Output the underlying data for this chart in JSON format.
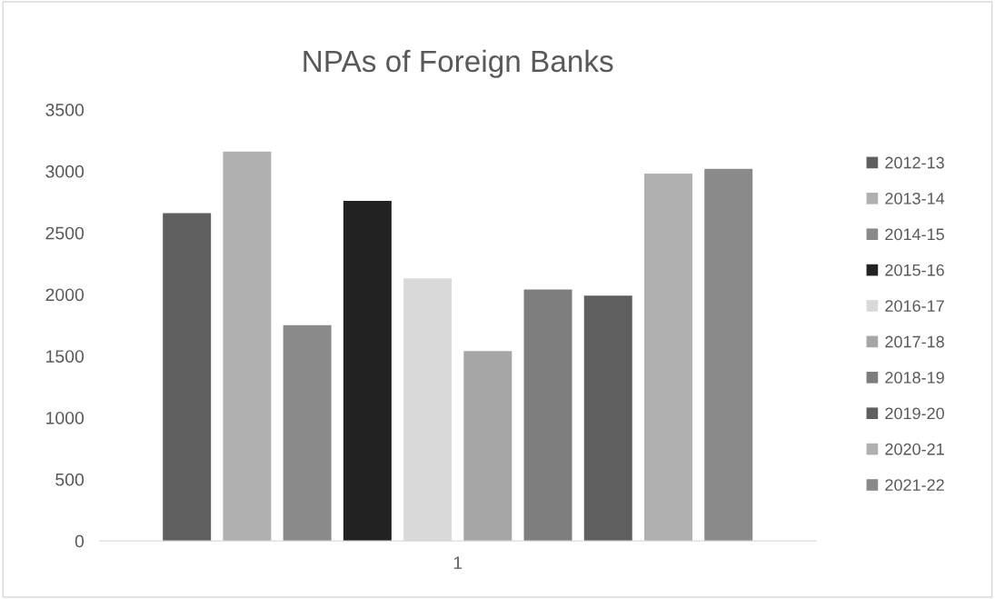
{
  "chart_data": {
    "type": "bar",
    "title": "NPAs of Foreign Banks",
    "categories": [
      "1"
    ],
    "series": [
      {
        "name": "2012-13",
        "color": "#5f5f5f",
        "values": [
          2660
        ]
      },
      {
        "name": "2013-14",
        "color": "#b0b0b0",
        "values": [
          3160
        ]
      },
      {
        "name": "2014-15",
        "color": "#8a8a8a",
        "values": [
          1750
        ]
      },
      {
        "name": "2015-16",
        "color": "#222222",
        "values": [
          2760
        ]
      },
      {
        "name": "2016-17",
        "color": "#d9d9d9",
        "values": [
          2130
        ]
      },
      {
        "name": "2017-18",
        "color": "#a6a6a6",
        "values": [
          1540
        ]
      },
      {
        "name": "2018-19",
        "color": "#7d7d7d",
        "values": [
          2040
        ]
      },
      {
        "name": "2019-20",
        "color": "#5f5f5f",
        "values": [
          1990
        ]
      },
      {
        "name": "2020-21",
        "color": "#b0b0b0",
        "values": [
          2980
        ]
      },
      {
        "name": "2021-22",
        "color": "#8a8a8a",
        "values": [
          3020
        ]
      }
    ],
    "ylim": [
      0,
      3500
    ],
    "yticks": [
      0,
      500,
      1000,
      1500,
      2000,
      2500,
      3000,
      3500
    ],
    "grid": false,
    "legend": "right"
  }
}
